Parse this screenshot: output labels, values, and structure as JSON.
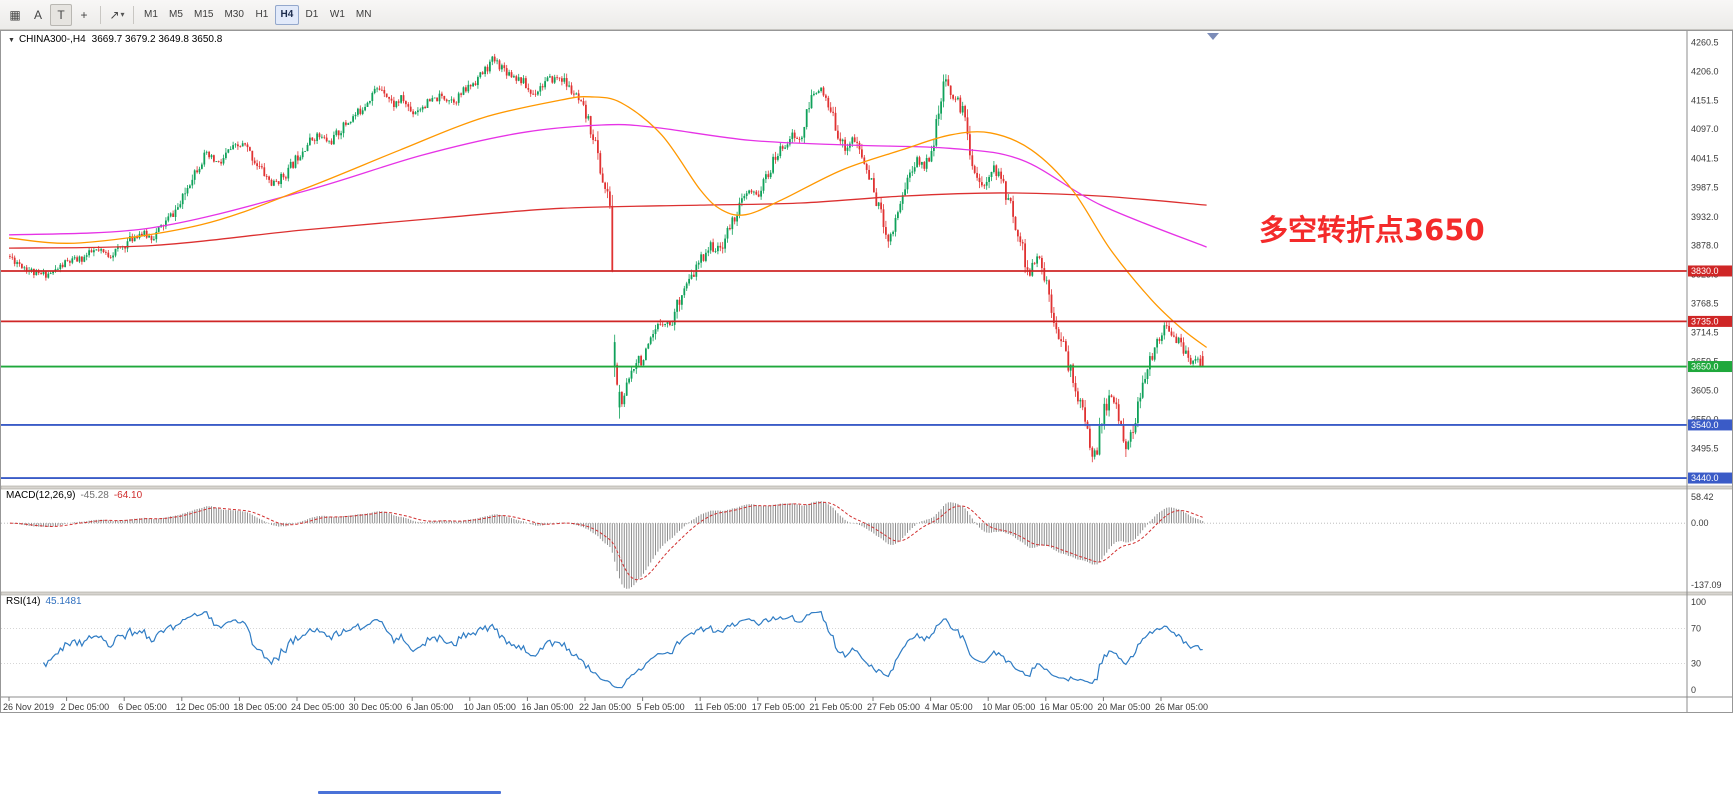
{
  "toolbar": {
    "caret_glyph": "▾",
    "tools": [
      {
        "name": "chart-grid",
        "glyph": "▦"
      },
      {
        "name": "text-label-tool",
        "glyph": "A"
      },
      {
        "name": "type-tool",
        "glyph": "T",
        "pressed": true
      },
      {
        "name": "crosshair-tool",
        "glyph": "+"
      },
      {
        "sep": true
      },
      {
        "name": "shapes-dropdown",
        "glyph": "↗",
        "caret": true
      },
      {
        "sep": true
      }
    ],
    "timeframes": [
      {
        "label": "M1"
      },
      {
        "label": "M5"
      },
      {
        "label": "M15"
      },
      {
        "label": "M30"
      },
      {
        "label": "H1"
      },
      {
        "label": "H4",
        "active": true
      },
      {
        "label": "D1"
      },
      {
        "label": "W1"
      },
      {
        "label": "MN"
      }
    ]
  },
  "chart": {
    "collapse_glyph": "▼",
    "symbol_timeframe": "CHINA300-,H4",
    "ohlc": "3669.7 3679.2 3649.8 3650.8",
    "annotation": {
      "text": "多空转折点3650",
      "color": "#f42a2a"
    },
    "colors": {
      "up": "#0fa15a",
      "down": "#e03232",
      "hist": "#8f8f8f",
      "signal": "#d23030",
      "rsi_line": "#2f7cc4",
      "axis_text": "#3a3a3a",
      "tag_text": "#ffffff"
    }
  },
  "chart_data": {
    "type": "candlestick",
    "symbol": "CHINA300-",
    "timeframe": "H4",
    "last_candle": {
      "open": 3669.7,
      "high": 3679.2,
      "low": 3649.8,
      "close": 3650.8
    },
    "synth": {
      "seed": 11,
      "volatility": 7,
      "bars": 498
    },
    "price_path": [
      [
        0,
        3858
      ],
      [
        6,
        3840
      ],
      [
        12,
        3822
      ],
      [
        18,
        3826
      ],
      [
        24,
        3846
      ],
      [
        30,
        3852
      ],
      [
        36,
        3868
      ],
      [
        42,
        3860
      ],
      [
        48,
        3878
      ],
      [
        54,
        3902
      ],
      [
        60,
        3893
      ],
      [
        66,
        3925
      ],
      [
        72,
        3958
      ],
      [
        76,
        4008
      ],
      [
        82,
        4048
      ],
      [
        88,
        4030
      ],
      [
        92,
        4058
      ],
      [
        98,
        4068
      ],
      [
        104,
        4028
      ],
      [
        110,
        3992
      ],
      [
        116,
        4015
      ],
      [
        122,
        4058
      ],
      [
        128,
        4086
      ],
      [
        134,
        4072
      ],
      [
        140,
        4105
      ],
      [
        146,
        4130
      ],
      [
        152,
        4168
      ],
      [
        156,
        4176
      ],
      [
        160,
        4142
      ],
      [
        164,
        4155
      ],
      [
        168,
        4128
      ],
      [
        174,
        4145
      ],
      [
        180,
        4158
      ],
      [
        186,
        4152
      ],
      [
        192,
        4178
      ],
      [
        197,
        4200
      ],
      [
        202,
        4228
      ],
      [
        208,
        4205
      ],
      [
        214,
        4188
      ],
      [
        218,
        4162
      ],
      [
        224,
        4188
      ],
      [
        230,
        4195
      ],
      [
        236,
        4160
      ],
      [
        240,
        4128
      ],
      [
        244,
        4080
      ],
      [
        247,
        4010
      ],
      [
        249,
        3975
      ],
      [
        251,
        3952
      ],
      [
        252,
        3712
      ],
      [
        254,
        3598
      ],
      [
        256,
        3578
      ],
      [
        259,
        3636
      ],
      [
        262,
        3672
      ],
      [
        264,
        3658
      ],
      [
        268,
        3698
      ],
      [
        272,
        3738
      ],
      [
        276,
        3728
      ],
      [
        280,
        3788
      ],
      [
        284,
        3812
      ],
      [
        288,
        3848
      ],
      [
        292,
        3878
      ],
      [
        296,
        3868
      ],
      [
        300,
        3908
      ],
      [
        304,
        3948
      ],
      [
        308,
        3978
      ],
      [
        312,
        3972
      ],
      [
        316,
        4008
      ],
      [
        320,
        4048
      ],
      [
        326,
        4086
      ],
      [
        330,
        4075
      ],
      [
        334,
        4148
      ],
      [
        337,
        4180
      ],
      [
        340,
        4152
      ],
      [
        344,
        4112
      ],
      [
        348,
        4060
      ],
      [
        352,
        4080
      ],
      [
        356,
        4040
      ],
      [
        360,
        3988
      ],
      [
        364,
        3928
      ],
      [
        367,
        3888
      ],
      [
        370,
        3938
      ],
      [
        374,
        3998
      ],
      [
        378,
        4038
      ],
      [
        382,
        4028
      ],
      [
        386,
        4088
      ],
      [
        390,
        4185
      ],
      [
        394,
        4158
      ],
      [
        398,
        4128
      ],
      [
        402,
        4028
      ],
      [
        406,
        3978
      ],
      [
        409,
        4028
      ],
      [
        413,
        4008
      ],
      [
        417,
        3958
      ],
      [
        421,
        3898
      ],
      [
        425,
        3820
      ],
      [
        429,
        3858
      ],
      [
        433,
        3798
      ],
      [
        436,
        3738
      ],
      [
        440,
        3678
      ],
      [
        444,
        3618
      ],
      [
        448,
        3555
      ],
      [
        451,
        3498
      ],
      [
        453,
        3478
      ],
      [
        456,
        3558
      ],
      [
        459,
        3598
      ],
      [
        462,
        3562
      ],
      [
        464,
        3535
      ],
      [
        466,
        3492
      ],
      [
        469,
        3548
      ],
      [
        472,
        3598
      ],
      [
        475,
        3648
      ],
      [
        478,
        3695
      ],
      [
        481,
        3722
      ],
      [
        484,
        3718
      ],
      [
        488,
        3692
      ],
      [
        492,
        3658
      ],
      [
        495,
        3668
      ],
      [
        497,
        3652
      ]
    ],
    "moving_averages": [
      {
        "name": "ma-slow-red",
        "color": "#dc3030",
        "points": [
          [
            0,
            3873
          ],
          [
            60,
            3878
          ],
          [
            122,
            3907
          ],
          [
            180,
            3930
          ],
          [
            230,
            3948
          ],
          [
            288,
            3954
          ],
          [
            330,
            3958
          ],
          [
            372,
            3971
          ],
          [
            413,
            3977
          ],
          [
            455,
            3971
          ],
          [
            499,
            3954
          ]
        ]
      },
      {
        "name": "ma-mid-magenta",
        "color": "#e633e6",
        "points": [
          [
            0,
            3898
          ],
          [
            59,
            3911
          ],
          [
            122,
            3979
          ],
          [
            172,
            4048
          ],
          [
            213,
            4090
          ],
          [
            247,
            4105
          ],
          [
            268,
            4101
          ],
          [
            309,
            4076
          ],
          [
            351,
            4067
          ],
          [
            392,
            4061
          ],
          [
            422,
            4039
          ],
          [
            455,
            3954
          ],
          [
            499,
            3875
          ]
        ]
      },
      {
        "name": "ma-fast-orange",
        "color": "#ff9800",
        "points": [
          [
            0,
            3892
          ],
          [
            30,
            3883
          ],
          [
            80,
            3917
          ],
          [
            122,
            3983
          ],
          [
            163,
            4058
          ],
          [
            197,
            4118
          ],
          [
            230,
            4152
          ],
          [
            242,
            4158
          ],
          [
            255,
            4147
          ],
          [
            272,
            4086
          ],
          [
            288,
            3983
          ],
          [
            297,
            3945
          ],
          [
            307,
            3936
          ],
          [
            322,
            3964
          ],
          [
            347,
            4020
          ],
          [
            372,
            4058
          ],
          [
            392,
            4086
          ],
          [
            409,
            4090
          ],
          [
            426,
            4058
          ],
          [
            443,
            3983
          ],
          [
            459,
            3870
          ],
          [
            476,
            3776
          ],
          [
            489,
            3720
          ],
          [
            499,
            3686
          ]
        ]
      }
    ],
    "hlines": [
      {
        "price": 3830.0,
        "label": "3830.0",
        "color": "#cf2626"
      },
      {
        "price": 3735.0,
        "label": "3735.0",
        "color": "#cf2626"
      },
      {
        "price": 3650.0,
        "label": "3650.0",
        "color": "#1fa83c"
      },
      {
        "price": 3540.0,
        "label": "3540.0",
        "color": "#3a5bc7"
      },
      {
        "price": 3440.0,
        "label": "3440.0",
        "color": "#3a5bc7"
      }
    ],
    "y_axis": {
      "range": [
        3425,
        4282
      ],
      "ticks": [
        4260.5,
        4206.0,
        4151.5,
        4097.0,
        4041.5,
        3987.5,
        3932.0,
        3878.0,
        3823.5,
        3768.5,
        3714.5,
        3659.5,
        3605.0,
        3550.0,
        3495.5,
        3441.0
      ]
    },
    "x_axis": {
      "labels": [
        {
          "bar": 0,
          "text": "26 Nov 2019"
        },
        {
          "bar": 24,
          "text": "2 Dec 05:00"
        },
        {
          "bar": 48,
          "text": "6 Dec 05:00"
        },
        {
          "bar": 72,
          "text": "12 Dec 05:00"
        },
        {
          "bar": 96,
          "text": "18 Dec 05:00"
        },
        {
          "bar": 120,
          "text": "24 Dec 05:00"
        },
        {
          "bar": 144,
          "text": "30 Dec 05:00"
        },
        {
          "bar": 168,
          "text": "6 Jan 05:00"
        },
        {
          "bar": 192,
          "text": "10 Jan 05:00"
        },
        {
          "bar": 216,
          "text": "16 Jan 05:00"
        },
        {
          "bar": 240,
          "text": "22 Jan 05:00"
        },
        {
          "bar": 264,
          "text": "5 Feb 05:00"
        },
        {
          "bar": 288,
          "text": "11 Feb 05:00"
        },
        {
          "bar": 312,
          "text": "17 Feb 05:00"
        },
        {
          "bar": 336,
          "text": "21 Feb 05:00"
        },
        {
          "bar": 360,
          "text": "27 Feb 05:00"
        },
        {
          "bar": 384,
          "text": "4 Mar 05:00"
        },
        {
          "bar": 408,
          "text": "10 Mar 05:00"
        },
        {
          "bar": 432,
          "text": "16 Mar 05:00"
        },
        {
          "bar": 456,
          "text": "20 Mar 05:00"
        },
        {
          "bar": 480,
          "text": "26 Mar 05:00"
        }
      ]
    },
    "macd": {
      "label": "MACD(12,26,9)",
      "value_main": "-45.28",
      "value_signal": "-64.10",
      "params": [
        12,
        26,
        9
      ],
      "axis_ticks": [
        58.42,
        0,
        -137.09
      ],
      "range": [
        -153,
        76
      ]
    },
    "rsi": {
      "label": "RSI(14)",
      "value": "45.1481",
      "period": 14,
      "levels": [
        70,
        30
      ],
      "axis_ticks": [
        100,
        70,
        30,
        0
      ],
      "range": [
        -8,
        108
      ]
    }
  }
}
